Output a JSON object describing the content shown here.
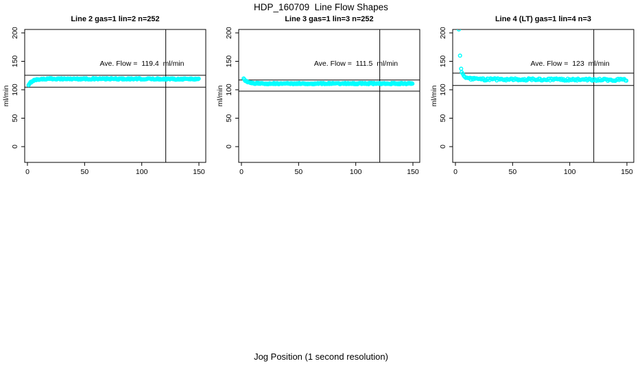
{
  "chart_data": {
    "type": "scatter",
    "title": "HDP_160709  Line Flow Shapes",
    "xlabel": "Jog Position (1 second resolution)",
    "ylabel": "ml/min",
    "x_ticks": [
      0,
      50,
      100,
      150
    ],
    "y_ticks": [
      0,
      50,
      100,
      150,
      200
    ],
    "xlim": [
      -2,
      156
    ],
    "ylim": [
      -28,
      206
    ],
    "grid": false,
    "point_color": "#00ffff",
    "axis_color": "#000000",
    "vline_x": 121,
    "panels": [
      {
        "title": "Line 2 gas=1 lin=2 n=252",
        "ave_flow": 119.4,
        "ave_flow_label": "Ave. Flow =  119.4  ml/min",
        "ref_line_upper": 125.4,
        "ref_line_lower": 104.5,
        "outliers": [],
        "trend": [
          [
            1,
            107.5
          ],
          [
            1.8,
            110
          ],
          [
            2.6,
            112.5
          ],
          [
            4,
            115
          ],
          [
            6,
            117
          ],
          [
            10,
            118.4
          ],
          [
            20,
            119.2
          ],
          [
            150,
            118.9
          ]
        ],
        "x_start": 1,
        "x_end": 150,
        "x_step": 0.6,
        "jitter": 1.2
      },
      {
        "title": "Line 3 gas=1 lin=3 n=252",
        "ave_flow": 111.5,
        "ave_flow_label": "Ave. Flow =  111.5  ml/min",
        "ref_line_upper": 117.1,
        "ref_line_lower": 97.6,
        "outliers": [],
        "trend": [
          [
            2,
            119
          ],
          [
            3,
            117
          ],
          [
            4.5,
            114.5
          ],
          [
            6.5,
            112.5
          ],
          [
            10,
            111.4
          ],
          [
            20,
            110.9
          ],
          [
            150,
            110.9
          ]
        ],
        "x_start": 2,
        "x_end": 150,
        "x_step": 0.6,
        "jitter": 1.1
      },
      {
        "title": "Line 4 (LT) gas=1 lin=4 n=3",
        "ave_flow": 123,
        "ave_flow_label": "Ave. Flow =  123  ml/min",
        "ref_line_upper": 129.2,
        "ref_line_lower": 107.6,
        "outliers": [
          [
            3,
            206
          ],
          [
            4,
            160
          ],
          [
            5,
            137
          ]
        ],
        "trend": [
          [
            5.5,
            131
          ],
          [
            6.5,
            127
          ],
          [
            8,
            123
          ],
          [
            10,
            120.5
          ],
          [
            14,
            119
          ],
          [
            25,
            118.3
          ],
          [
            90,
            118
          ],
          [
            150,
            117.2
          ]
        ],
        "x_start": 5.5,
        "x_end": 150,
        "x_step": 0.9,
        "jitter": 1.9
      }
    ]
  }
}
